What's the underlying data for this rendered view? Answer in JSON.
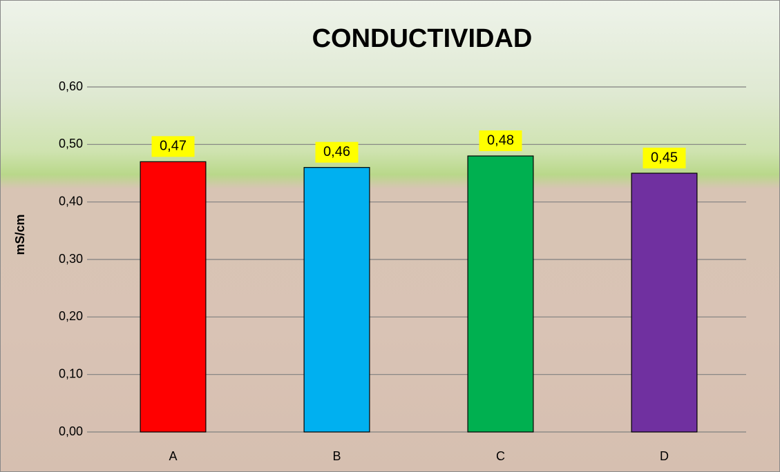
{
  "chart_data": {
    "type": "bar",
    "title": "CONDUCTIVIDAD",
    "y_label": "mS/cm",
    "categories": [
      "A",
      "B",
      "C",
      "D"
    ],
    "values": [
      0.47,
      0.46,
      0.48,
      0.45
    ],
    "value_labels": [
      "0,47",
      "0,46",
      "0,48",
      "0,45"
    ],
    "colors": [
      "#ff0000",
      "#00b0f0",
      "#00b050",
      "#7030a0"
    ],
    "ylim": [
      0,
      0.6
    ],
    "yticks": [
      {
        "value": 0,
        "label": "0,00"
      },
      {
        "value": 0.1,
        "label": "0,10"
      },
      {
        "value": 0.2,
        "label": "0,20"
      },
      {
        "value": 0.3,
        "label": "0,30"
      },
      {
        "value": 0.4,
        "label": "0,40"
      },
      {
        "value": 0.5,
        "label": "0,50"
      },
      {
        "value": 0.6,
        "label": "0,60"
      }
    ],
    "grid": true
  }
}
